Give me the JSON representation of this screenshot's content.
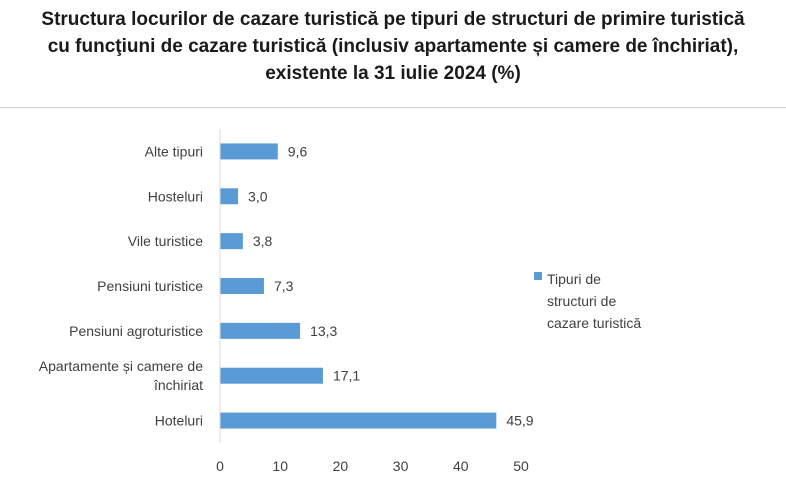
{
  "chart_data": {
    "type": "bar",
    "orientation": "horizontal",
    "title_lines": [
      "Structura locurilor de cazare turistică pe tipuri de structuri de primire turistică",
      "cu funcţiuni de cazare turistică (inclusiv apartamente și camere de închiriat),",
      "existente la 31 iulie 2024 (%)"
    ],
    "categories": [
      [
        "Alte  tipuri"
      ],
      [
        "Hosteluri"
      ],
      [
        "Vile turistice"
      ],
      [
        "Pensiuni turistice"
      ],
      [
        "Pensiuni agroturistice"
      ],
      [
        "Apartamente și camere de",
        "închiriat"
      ],
      [
        "Hoteluri"
      ]
    ],
    "series": [
      {
        "name": "Tipuri de structuri  de cazare turistică",
        "values": [
          9.6,
          3.0,
          3.8,
          7.3,
          13.3,
          17.1,
          45.9
        ],
        "value_labels": [
          "9,6",
          "3,0",
          "3,8",
          "7,3",
          "13,3",
          "17,1",
          "45,9"
        ],
        "color": "#5b9bd5"
      }
    ],
    "xlim": [
      0,
      50
    ],
    "xticks": [
      "0",
      "10",
      "20",
      "30",
      "40",
      "50"
    ],
    "grid": false,
    "legend": {
      "position": "right",
      "lines": [
        "Tipuri de",
        "structuri  de",
        "cazare turistică"
      ]
    }
  }
}
